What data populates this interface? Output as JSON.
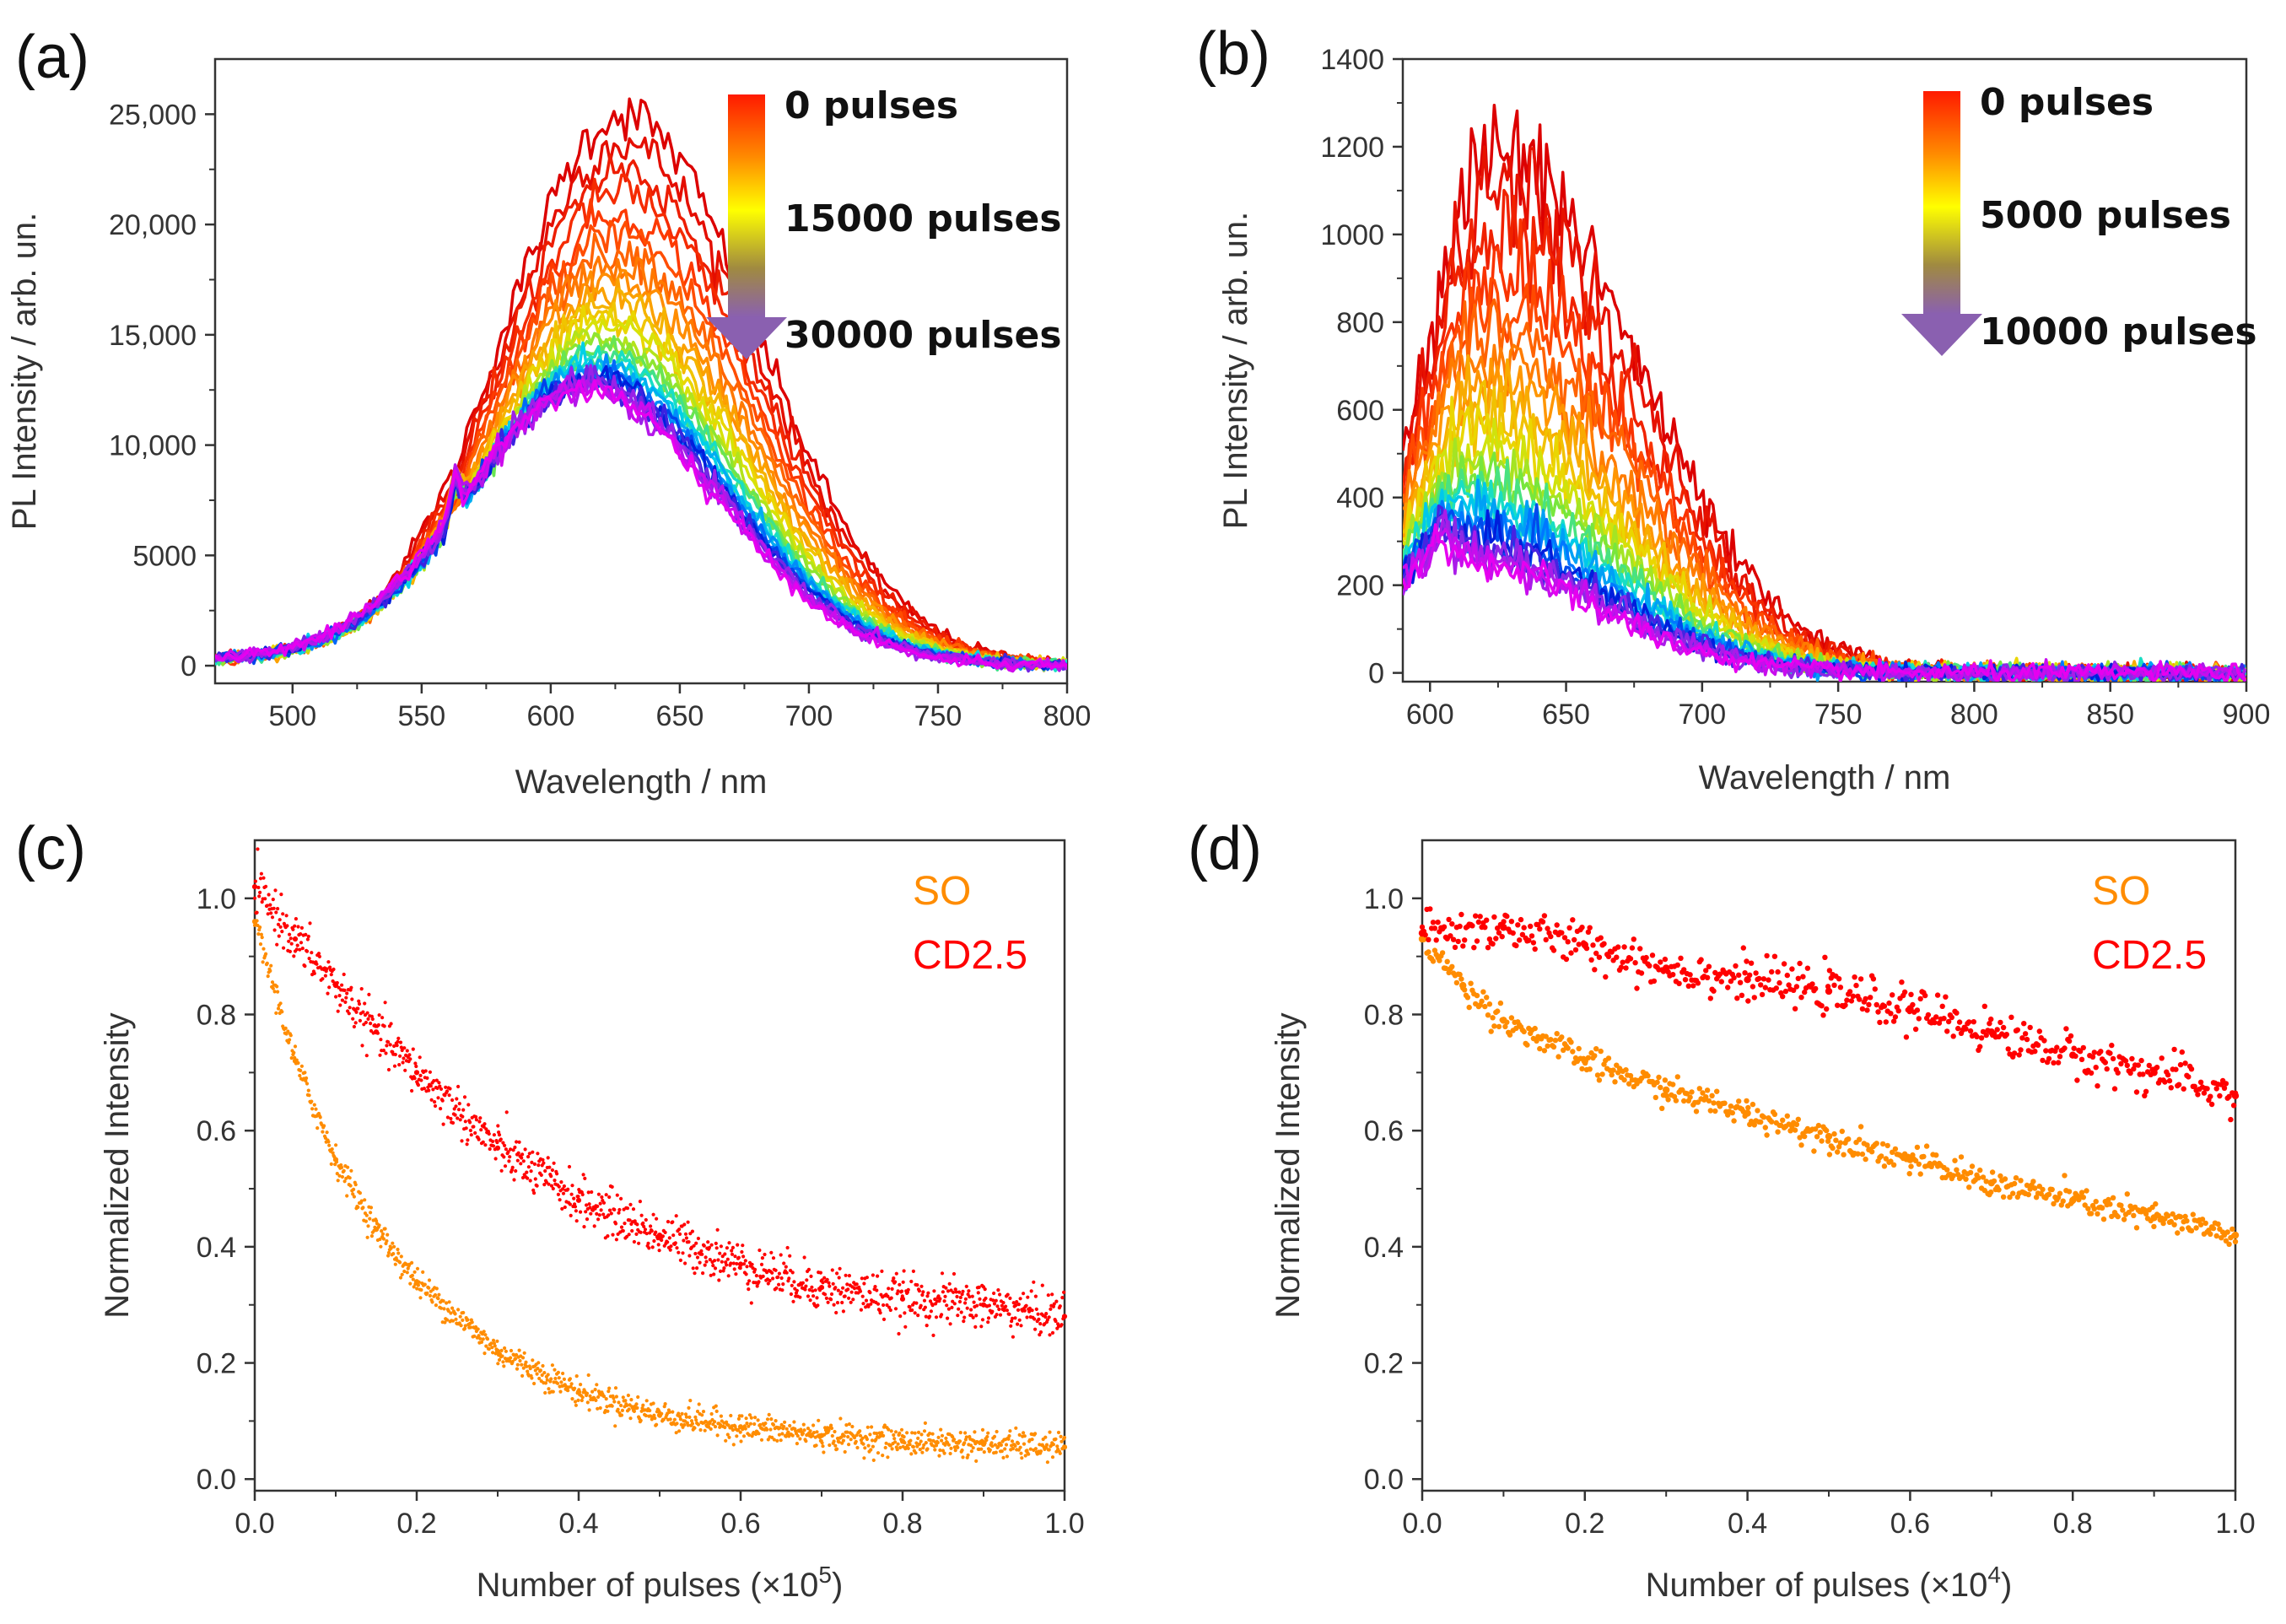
{
  "chart_data": [
    {
      "panel": "(a)",
      "type": "line",
      "xlabel": "Wavelength / nm",
      "ylabel": "PL Intensity / arb. un.",
      "xlim": [
        470,
        800
      ],
      "ylim": [
        -800,
        27500
      ],
      "xticks": [
        500,
        550,
        600,
        650,
        700,
        750,
        800
      ],
      "yticks": [
        0,
        5000,
        10000,
        15000,
        20000,
        25000
      ],
      "ytick_labels": [
        "0",
        "5000",
        "10,000",
        "15,000",
        "20,000",
        "25,000"
      ],
      "gradient_labels": [
        "0 pulses",
        "15000 pulses",
        "30000 pulses"
      ],
      "series_description": "PL spectra recorded every 1000 pulses, colored red→violet with increasing pulse count",
      "peak_center_nm": [
        628,
        612
      ],
      "peak_intensity": [
        25000,
        12500
      ],
      "pulses": [
        0,
        30000
      ],
      "laser_artifact_nm": 563
    },
    {
      "panel": "(b)",
      "type": "line",
      "xlabel": "Wavelength / nm",
      "ylabel": "PL Intensity / arb. un.",
      "xlim": [
        590,
        900
      ],
      "ylim": [
        -20,
        1400
      ],
      "xticks": [
        600,
        650,
        700,
        750,
        800,
        850,
        900
      ],
      "yticks": [
        0,
        200,
        400,
        600,
        800,
        1000,
        1200,
        1400
      ],
      "ytick_labels": [
        "0",
        "200",
        "400",
        "600",
        "800",
        "1000",
        "1200",
        "1400"
      ],
      "gradient_labels": [
        "0 pulses",
        "5000 pulses",
        "10000 pulses"
      ],
      "peak_center_nm": [
        625,
        608
      ],
      "peak_intensity": [
        1200,
        260
      ],
      "pulses": [
        0,
        10000
      ]
    },
    {
      "panel": "(c)",
      "type": "scatter",
      "xlabel": "Number of pulses (×10",
      "xlabel_exp": "5",
      "xlabel_end": ")",
      "ylabel": "Normalized Intensity",
      "xlim": [
        0,
        1.0
      ],
      "ylim": [
        -0.02,
        1.1
      ],
      "xticks": [
        0.0,
        0.2,
        0.4,
        0.6,
        0.8,
        1.0
      ],
      "yticks": [
        0.0,
        0.2,
        0.4,
        0.6,
        0.8,
        1.0
      ],
      "series": [
        {
          "name": "SO",
          "color": "#ff8c00",
          "x": [
            0.0,
            0.05,
            0.1,
            0.15,
            0.2,
            0.3,
            0.4,
            0.5,
            0.6,
            0.7,
            0.8,
            0.9,
            1.0
          ],
          "y": [
            0.96,
            0.72,
            0.55,
            0.43,
            0.34,
            0.22,
            0.15,
            0.11,
            0.09,
            0.075,
            0.065,
            0.06,
            0.055
          ]
        },
        {
          "name": "CD2.5",
          "color": "#ff0000",
          "x": [
            0.0,
            0.05,
            0.1,
            0.15,
            0.2,
            0.3,
            0.4,
            0.5,
            0.6,
            0.7,
            0.8,
            0.9,
            1.0
          ],
          "y": [
            1.02,
            0.93,
            0.85,
            0.77,
            0.7,
            0.57,
            0.48,
            0.42,
            0.37,
            0.33,
            0.31,
            0.3,
            0.28
          ]
        }
      ]
    },
    {
      "panel": "(d)",
      "type": "scatter",
      "xlabel": "Number of pulses (×10",
      "xlabel_exp": "4",
      "xlabel_end": ")",
      "ylabel": "Normalized Intensity",
      "xlim": [
        0,
        1.0
      ],
      "ylim": [
        -0.02,
        1.1
      ],
      "xticks": [
        0.0,
        0.2,
        0.4,
        0.6,
        0.8,
        1.0
      ],
      "yticks": [
        0.0,
        0.2,
        0.4,
        0.6,
        0.8,
        1.0
      ],
      "series": [
        {
          "name": "SO",
          "color": "#ff8c00",
          "x": [
            0.0,
            0.05,
            0.1,
            0.2,
            0.3,
            0.4,
            0.5,
            0.6,
            0.7,
            0.8,
            0.9,
            1.0
          ],
          "y": [
            0.93,
            0.85,
            0.79,
            0.72,
            0.67,
            0.63,
            0.59,
            0.55,
            0.51,
            0.48,
            0.45,
            0.42
          ]
        },
        {
          "name": "CD2.5",
          "color": "#ff0000",
          "x": [
            0.0,
            0.1,
            0.2,
            0.3,
            0.4,
            0.5,
            0.6,
            0.7,
            0.8,
            0.9,
            1.0
          ],
          "y": [
            0.94,
            0.95,
            0.92,
            0.88,
            0.86,
            0.84,
            0.81,
            0.77,
            0.73,
            0.7,
            0.66
          ]
        }
      ]
    }
  ]
}
